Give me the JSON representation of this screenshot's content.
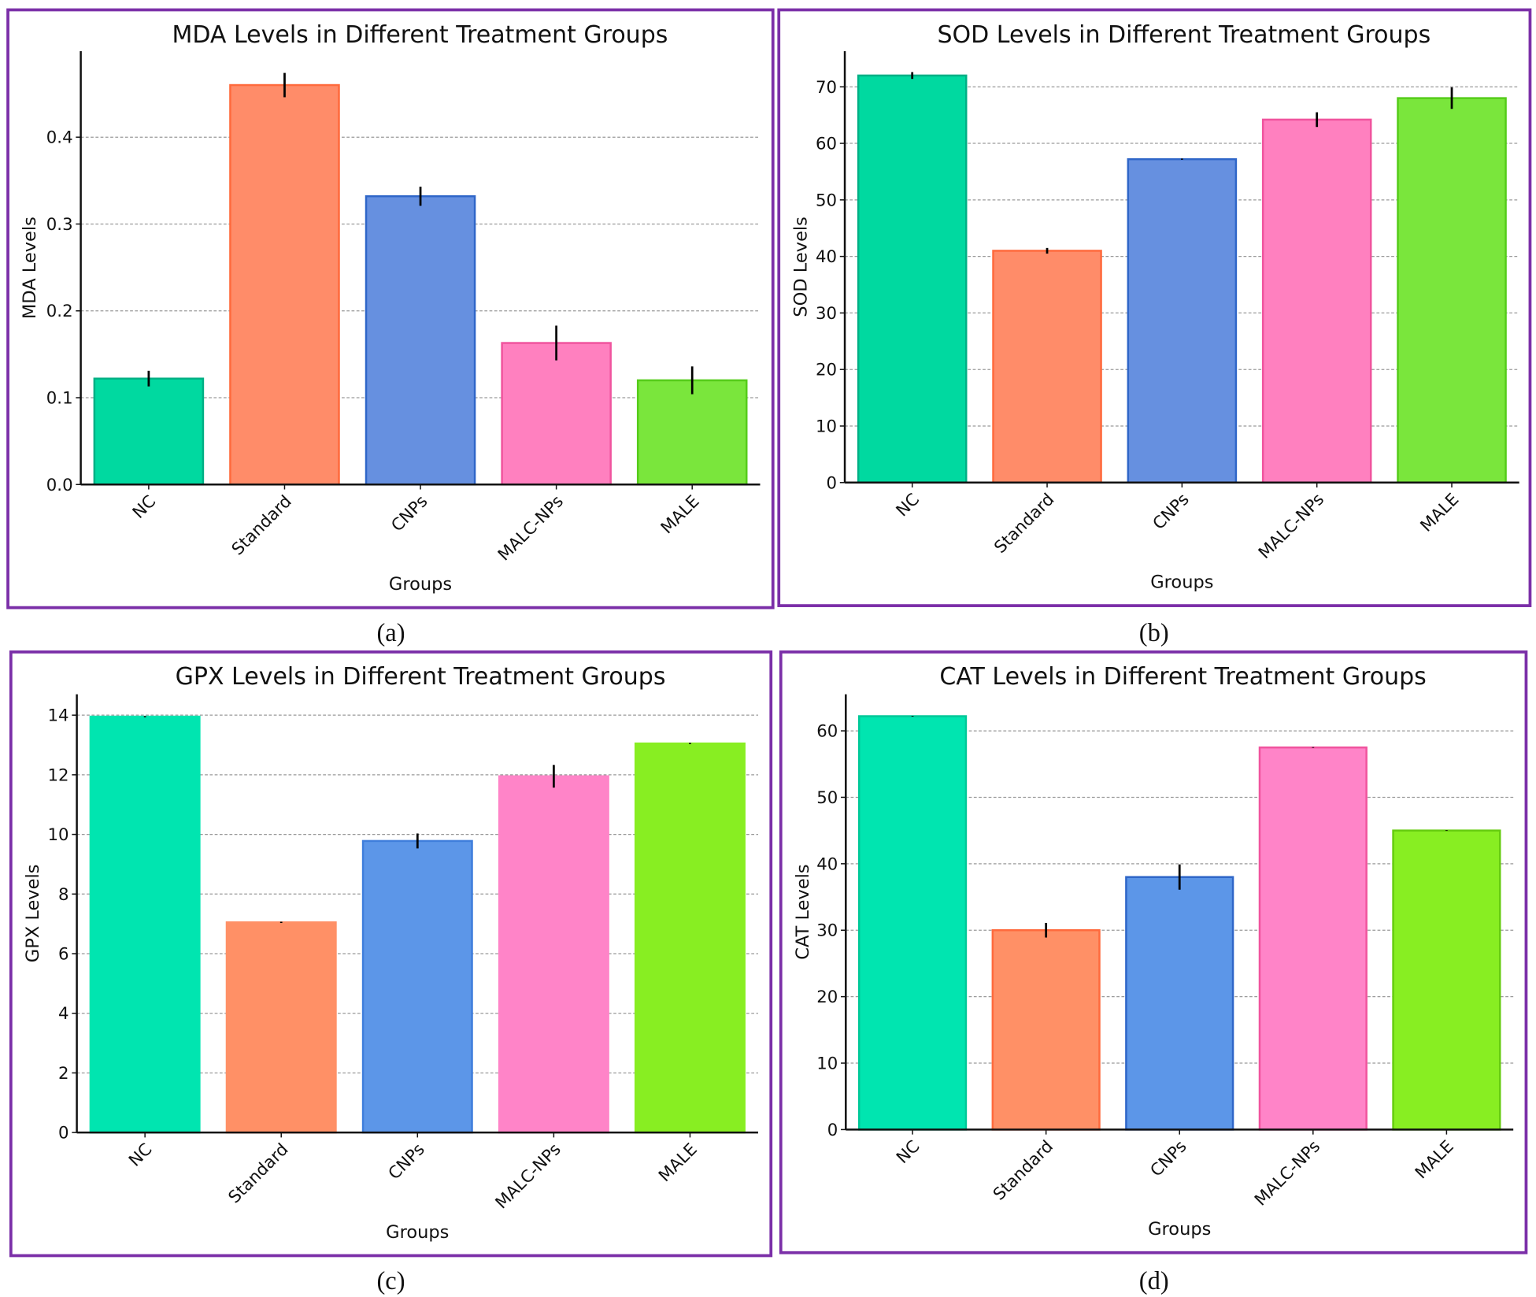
{
  "chart_data": [
    {
      "type": "bar",
      "panel_label": "(a)",
      "title": "MDA Levels in Different Treatment Groups",
      "xlabel": "Groups",
      "ylabel": "MDA Levels",
      "categories": [
        "NC",
        "Standard",
        "CNPs",
        "MALC-NPs",
        "MALE"
      ],
      "values": [
        0.122,
        0.46,
        0.332,
        0.163,
        0.12
      ],
      "errors": [
        0.009,
        0.014,
        0.011,
        0.02,
        0.016
      ],
      "ylim": [
        0,
        0.499
      ],
      "yticks": [
        0.0,
        0.1,
        0.2,
        0.3,
        0.4
      ],
      "ytick_labels": [
        "0.0",
        "0.1",
        "0.2",
        "0.3",
        "0.4"
      ],
      "grid": "y dashed",
      "colors": [
        "#00D9A0",
        "#FF8C69",
        "#6690E0",
        "#FF80BF",
        "#7AE63C"
      ],
      "edge_colors": [
        "#00B085",
        "#FF6A3D",
        "#2F66C8",
        "#F0549E",
        "#55CC1A"
      ]
    },
    {
      "type": "bar",
      "panel_label": "(b)",
      "title": "SOD Levels in Different Treatment Groups",
      "xlabel": "Groups",
      "ylabel": "SOD Levels",
      "categories": [
        "NC",
        "Standard",
        "CNPs",
        "MALC-NPs",
        "MALE"
      ],
      "values": [
        72,
        41,
        57.2,
        64.2,
        68
      ],
      "errors": [
        0.6,
        0.5,
        0.1,
        1.3,
        1.9
      ],
      "ylim": [
        0,
        76.3
      ],
      "yticks": [
        0,
        10,
        20,
        30,
        40,
        50,
        60,
        70
      ],
      "ytick_labels": [
        "0",
        "10",
        "20",
        "30",
        "40",
        "50",
        "60",
        "70"
      ],
      "grid": "y dashed",
      "colors": [
        "#00D9A0",
        "#FF8C69",
        "#6690E0",
        "#FF80BF",
        "#7AE63C"
      ],
      "edge_colors": [
        "#00B085",
        "#FF6A3D",
        "#2F66C8",
        "#F0549E",
        "#55CC1A"
      ]
    },
    {
      "type": "bar",
      "panel_label": "(c)",
      "title": "GPX Levels in Different Treatment Groups",
      "xlabel": "Groups",
      "ylabel": "GPX Levels",
      "categories": [
        "NC",
        "Standard",
        "CNPs",
        "MALC-NPs",
        "MALE"
      ],
      "values": [
        13.95,
        7.05,
        9.78,
        11.95,
        13.05
      ],
      "errors": [
        0.02,
        0.02,
        0.25,
        0.38,
        0.02
      ],
      "ylim": [
        0,
        14.7
      ],
      "yticks": [
        0,
        2,
        4,
        6,
        8,
        10,
        12,
        14
      ],
      "ytick_labels": [
        "0",
        "2",
        "4",
        "6",
        "8",
        "10",
        "12",
        "14"
      ],
      "grid": "y dashed",
      "colors": [
        "#00E5B0",
        "#FF9066",
        "#5C96E8",
        "#FF84C8",
        "#88EE22"
      ],
      "edge_colors": [
        "#00E5B0",
        "#FF9066",
        "#3F7EDC",
        "#FF84C8",
        "#88EE22"
      ]
    },
    {
      "type": "bar",
      "panel_label": "(d)",
      "title": "CAT Levels in Different Treatment Groups",
      "xlabel": "Groups",
      "ylabel": "CAT Levels",
      "categories": [
        "NC",
        "Standard",
        "CNPs",
        "MALC-NPs",
        "MALE"
      ],
      "values": [
        62.2,
        30,
        38,
        57.5,
        45
      ],
      "errors": [
        0.05,
        1.1,
        1.9,
        0.05,
        0.05
      ],
      "ylim": [
        0,
        65.5
      ],
      "yticks": [
        0,
        10,
        20,
        30,
        40,
        50,
        60
      ],
      "ytick_labels": [
        "0",
        "10",
        "20",
        "30",
        "40",
        "50",
        "60"
      ],
      "grid": "y dashed",
      "colors": [
        "#00E5B0",
        "#FF9066",
        "#5C96E8",
        "#FF84C8",
        "#88EE22"
      ],
      "edge_colors": [
        "#00C898",
        "#FF6A3D",
        "#2F66C8",
        "#F0549E",
        "#66CC10"
      ]
    }
  ],
  "colors": {
    "panel_border": "#7B2FA8",
    "grid": "#9a9a9a",
    "axis": "#111111"
  }
}
